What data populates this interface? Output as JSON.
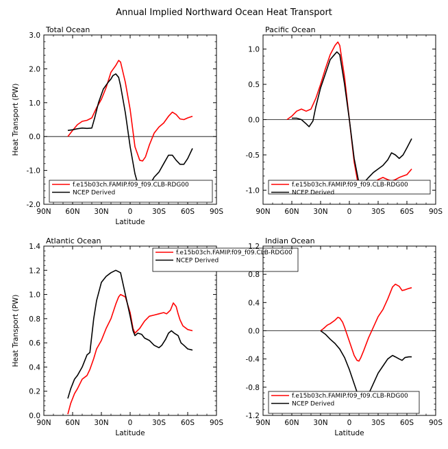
{
  "figure": {
    "title": "Annual Implied Northward Ocean Heat Transport"
  },
  "colors": {
    "model": "#ff0000",
    "ncep": "#000000",
    "axes": "#000000",
    "zero_line": "#000000"
  },
  "chart_data": [
    {
      "type": "line",
      "title": "Total Ocean",
      "xlabel": "Latitude",
      "ylabel": "Heat Transport (PW)",
      "xlim": [
        90,
        -90
      ],
      "ylim": [
        -2.0,
        3.0
      ],
      "xticks": [
        90,
        60,
        30,
        0,
        -30,
        -60,
        -90
      ],
      "xtick_labels": [
        "90N",
        "60N",
        "30N",
        "0",
        "30S",
        "60S",
        "90S"
      ],
      "yticks": [
        -2.0,
        -1.0,
        0.0,
        1.0,
        2.0,
        3.0
      ],
      "ytick_labels": [
        "-2.0",
        "-1.0",
        "0.0",
        "1.0",
        "2.0",
        "3.0"
      ],
      "zero_line": true,
      "legend_position": "bottom-left",
      "series": [
        {
          "name": "f.e15b03ch.FAMIP.f09_f09.CLB-RDG00",
          "color": "#ff0000",
          "x": [
            65,
            60,
            55,
            50,
            45,
            40,
            35,
            30,
            25,
            20,
            15,
            12,
            10,
            5,
            0,
            -5,
            -10,
            -13,
            -16,
            -20,
            -25,
            -30,
            -35,
            -40,
            -44,
            -48,
            -52,
            -56,
            -60,
            -65
          ],
          "y": [
            0.0,
            0.18,
            0.35,
            0.45,
            0.48,
            0.55,
            0.85,
            1.1,
            1.45,
            1.9,
            2.1,
            2.25,
            2.2,
            1.6,
            0.8,
            -0.3,
            -0.7,
            -0.72,
            -0.6,
            -0.25,
            0.1,
            0.28,
            0.4,
            0.6,
            0.72,
            0.65,
            0.52,
            0.5,
            0.55,
            0.6
          ]
        },
        {
          "name": "NCEP Derived",
          "color": "#000000",
          "x": [
            65,
            60,
            55,
            50,
            45,
            40,
            37,
            33,
            28,
            23,
            20,
            18,
            15,
            12,
            10,
            5,
            0,
            -5,
            -10,
            -13,
            -16,
            -20,
            -25,
            -30,
            -35,
            -40,
            -44,
            -48,
            -52,
            -56,
            -60,
            -65
          ],
          "y": [
            0.18,
            0.2,
            0.23,
            0.25,
            0.24,
            0.25,
            0.55,
            1.0,
            1.4,
            1.6,
            1.7,
            1.8,
            1.85,
            1.75,
            1.5,
            0.7,
            -0.3,
            -1.1,
            -1.6,
            -1.65,
            -1.55,
            -1.45,
            -1.2,
            -1.05,
            -0.8,
            -0.55,
            -0.55,
            -0.7,
            -0.82,
            -0.82,
            -0.65,
            -0.35
          ]
        }
      ]
    },
    {
      "type": "line",
      "title": "Pacific Ocean",
      "xlabel": "",
      "ylabel": "",
      "xlim": [
        90,
        -90
      ],
      "ylim": [
        -1.2,
        1.2
      ],
      "xticks": [
        90,
        60,
        30,
        0,
        -30,
        -60,
        -90
      ],
      "xtick_labels": [
        "90N",
        "60N",
        "30N",
        "0",
        "30S",
        "60S",
        "90S"
      ],
      "yticks": [
        -1.0,
        -0.5,
        0.0,
        0.5,
        1.0
      ],
      "ytick_labels": [
        "-1.0",
        "-0.5",
        "0.0",
        "0.5",
        "1.0"
      ],
      "zero_line": true,
      "legend_position": "bottom-left",
      "series": [
        {
          "name": "f.e15b03ch.FAMIP.f09_f09.CLB-RDG00",
          "color": "#ff0000",
          "x": [
            65,
            60,
            55,
            50,
            45,
            40,
            35,
            30,
            25,
            20,
            15,
            12,
            10,
            5,
            0,
            -5,
            -10,
            -13,
            -16,
            -20,
            -25,
            -30,
            -35,
            -40,
            -44,
            -48,
            -52,
            -56,
            -60,
            -65
          ],
          "y": [
            0.0,
            0.05,
            0.12,
            0.15,
            0.12,
            0.15,
            0.3,
            0.5,
            0.72,
            0.92,
            1.05,
            1.1,
            1.05,
            0.6,
            0.0,
            -0.6,
            -0.98,
            -1.03,
            -1.01,
            -0.95,
            -0.9,
            -0.85,
            -0.82,
            -0.85,
            -0.87,
            -0.85,
            -0.82,
            -0.8,
            -0.78,
            -0.7
          ]
        },
        {
          "name": "NCEP Derived",
          "color": "#000000",
          "x": [
            60,
            55,
            50,
            45,
            42,
            38,
            35,
            30,
            25,
            20,
            15,
            13,
            10,
            5,
            0,
            -5,
            -10,
            -13,
            -16,
            -20,
            -25,
            -30,
            -35,
            -40,
            -44,
            -48,
            -52,
            -56,
            -60,
            -65
          ],
          "y": [
            0.02,
            0.02,
            0.0,
            -0.06,
            -0.1,
            -0.02,
            0.18,
            0.45,
            0.65,
            0.85,
            0.93,
            0.96,
            0.92,
            0.5,
            0.0,
            -0.55,
            -0.9,
            -0.93,
            -0.88,
            -0.82,
            -0.75,
            -0.7,
            -0.65,
            -0.57,
            -0.47,
            -0.5,
            -0.55,
            -0.5,
            -0.4,
            -0.27
          ]
        }
      ]
    },
    {
      "type": "line",
      "title": "Atlantic Ocean",
      "xlabel": "Latitude",
      "ylabel": "Heat Transport (PW)",
      "xlim": [
        90,
        -90
      ],
      "ylim": [
        0.0,
        1.4
      ],
      "xticks": [
        90,
        60,
        30,
        0,
        -30,
        -60,
        -90
      ],
      "xtick_labels": [
        "90N",
        "60N",
        "30N",
        "0",
        "30S",
        "60S",
        "90S"
      ],
      "yticks": [
        0.0,
        0.2,
        0.4,
        0.6,
        0.8,
        1.0,
        1.2,
        1.4
      ],
      "ytick_labels": [
        "0.0",
        "0.2",
        "0.4",
        "0.6",
        "0.8",
        "1.0",
        "1.2",
        "1.4"
      ],
      "zero_line": false,
      "legend_position": "top-center",
      "series": [
        {
          "name": "f.e15b03ch.FAMIP.f09_f09.CLB-RDG00",
          "color": "#ff0000",
          "x": [
            65,
            62,
            58,
            55,
            50,
            45,
            42,
            38,
            35,
            30,
            25,
            20,
            15,
            12,
            10,
            5,
            0,
            -3,
            -5,
            -10,
            -15,
            -20,
            -25,
            -30,
            -35,
            -38,
            -42,
            -45,
            -48,
            -50,
            -52,
            -55,
            -60,
            -65
          ],
          "y": [
            0.01,
            0.1,
            0.18,
            0.22,
            0.3,
            0.33,
            0.38,
            0.47,
            0.55,
            0.62,
            0.72,
            0.8,
            0.92,
            0.98,
            1.0,
            0.98,
            0.85,
            0.72,
            0.68,
            0.72,
            0.78,
            0.82,
            0.83,
            0.84,
            0.85,
            0.84,
            0.87,
            0.93,
            0.9,
            0.84,
            0.79,
            0.74,
            0.71,
            0.7
          ]
        },
        {
          "name": "NCEP Derived",
          "color": "#000000",
          "x": [
            65,
            62,
            58,
            55,
            50,
            45,
            42,
            38,
            35,
            30,
            25,
            20,
            15,
            10,
            5,
            0,
            -3,
            -5,
            -8,
            -12,
            -15,
            -20,
            -25,
            -30,
            -33,
            -37,
            -40,
            -43,
            -46,
            -50,
            -53,
            -56,
            -60,
            -65
          ],
          "y": [
            0.14,
            0.22,
            0.3,
            0.33,
            0.4,
            0.5,
            0.52,
            0.8,
            0.95,
            1.1,
            1.15,
            1.18,
            1.2,
            1.18,
            1.0,
            0.82,
            0.7,
            0.66,
            0.68,
            0.67,
            0.64,
            0.62,
            0.58,
            0.56,
            0.58,
            0.63,
            0.68,
            0.7,
            0.68,
            0.66,
            0.6,
            0.58,
            0.55,
            0.54
          ]
        }
      ]
    },
    {
      "type": "line",
      "title": "Indian Ocean",
      "xlabel": "Latitude",
      "ylabel": "",
      "xlim": [
        90,
        -90
      ],
      "ylim": [
        -1.2,
        1.2
      ],
      "xticks": [
        90,
        60,
        30,
        0,
        -30,
        -60,
        -90
      ],
      "xtick_labels": [
        "90N",
        "60N",
        "30N",
        "0",
        "30S",
        "60S",
        "90S"
      ],
      "yticks": [
        -1.2,
        -0.8,
        -0.4,
        0.0,
        0.4,
        0.8,
        1.2
      ],
      "ytick_labels": [
        "-1.2",
        "-0.8",
        "-0.4",
        "0.0",
        "0.4",
        "0.8",
        "1.2"
      ],
      "zero_line": true,
      "legend_position": "bottom-left",
      "series": [
        {
          "name": "f.e15b03ch.FAMIP.f09_f09.CLB-RDG00",
          "color": "#ff0000",
          "x": [
            30,
            27,
            23,
            20,
            15,
            12,
            10,
            7,
            5,
            0,
            -5,
            -8,
            -10,
            -12,
            -15,
            -20,
            -25,
            -30,
            -35,
            -40,
            -45,
            -48,
            -52,
            -55,
            -58,
            -62,
            -65
          ],
          "y": [
            0.0,
            0.03,
            0.08,
            0.1,
            0.15,
            0.19,
            0.18,
            0.12,
            0.05,
            -0.15,
            -0.35,
            -0.42,
            -0.43,
            -0.38,
            -0.28,
            -0.1,
            0.05,
            0.2,
            0.3,
            0.45,
            0.62,
            0.66,
            0.63,
            0.57,
            0.58,
            0.6,
            0.61
          ]
        },
        {
          "name": "NCEP Derived",
          "color": "#000000",
          "x": [
            30,
            25,
            20,
            15,
            10,
            5,
            0,
            -5,
            -10,
            -12,
            -15,
            -20,
            -25,
            -30,
            -35,
            -40,
            -45,
            -48,
            -52,
            -55,
            -58,
            -62,
            -65
          ],
          "y": [
            0.0,
            -0.05,
            -0.12,
            -0.18,
            -0.26,
            -0.38,
            -0.55,
            -0.75,
            -0.95,
            -1.03,
            -1.0,
            -0.9,
            -0.75,
            -0.6,
            -0.5,
            -0.4,
            -0.35,
            -0.37,
            -0.4,
            -0.42,
            -0.38,
            -0.37,
            -0.37
          ]
        }
      ]
    }
  ]
}
